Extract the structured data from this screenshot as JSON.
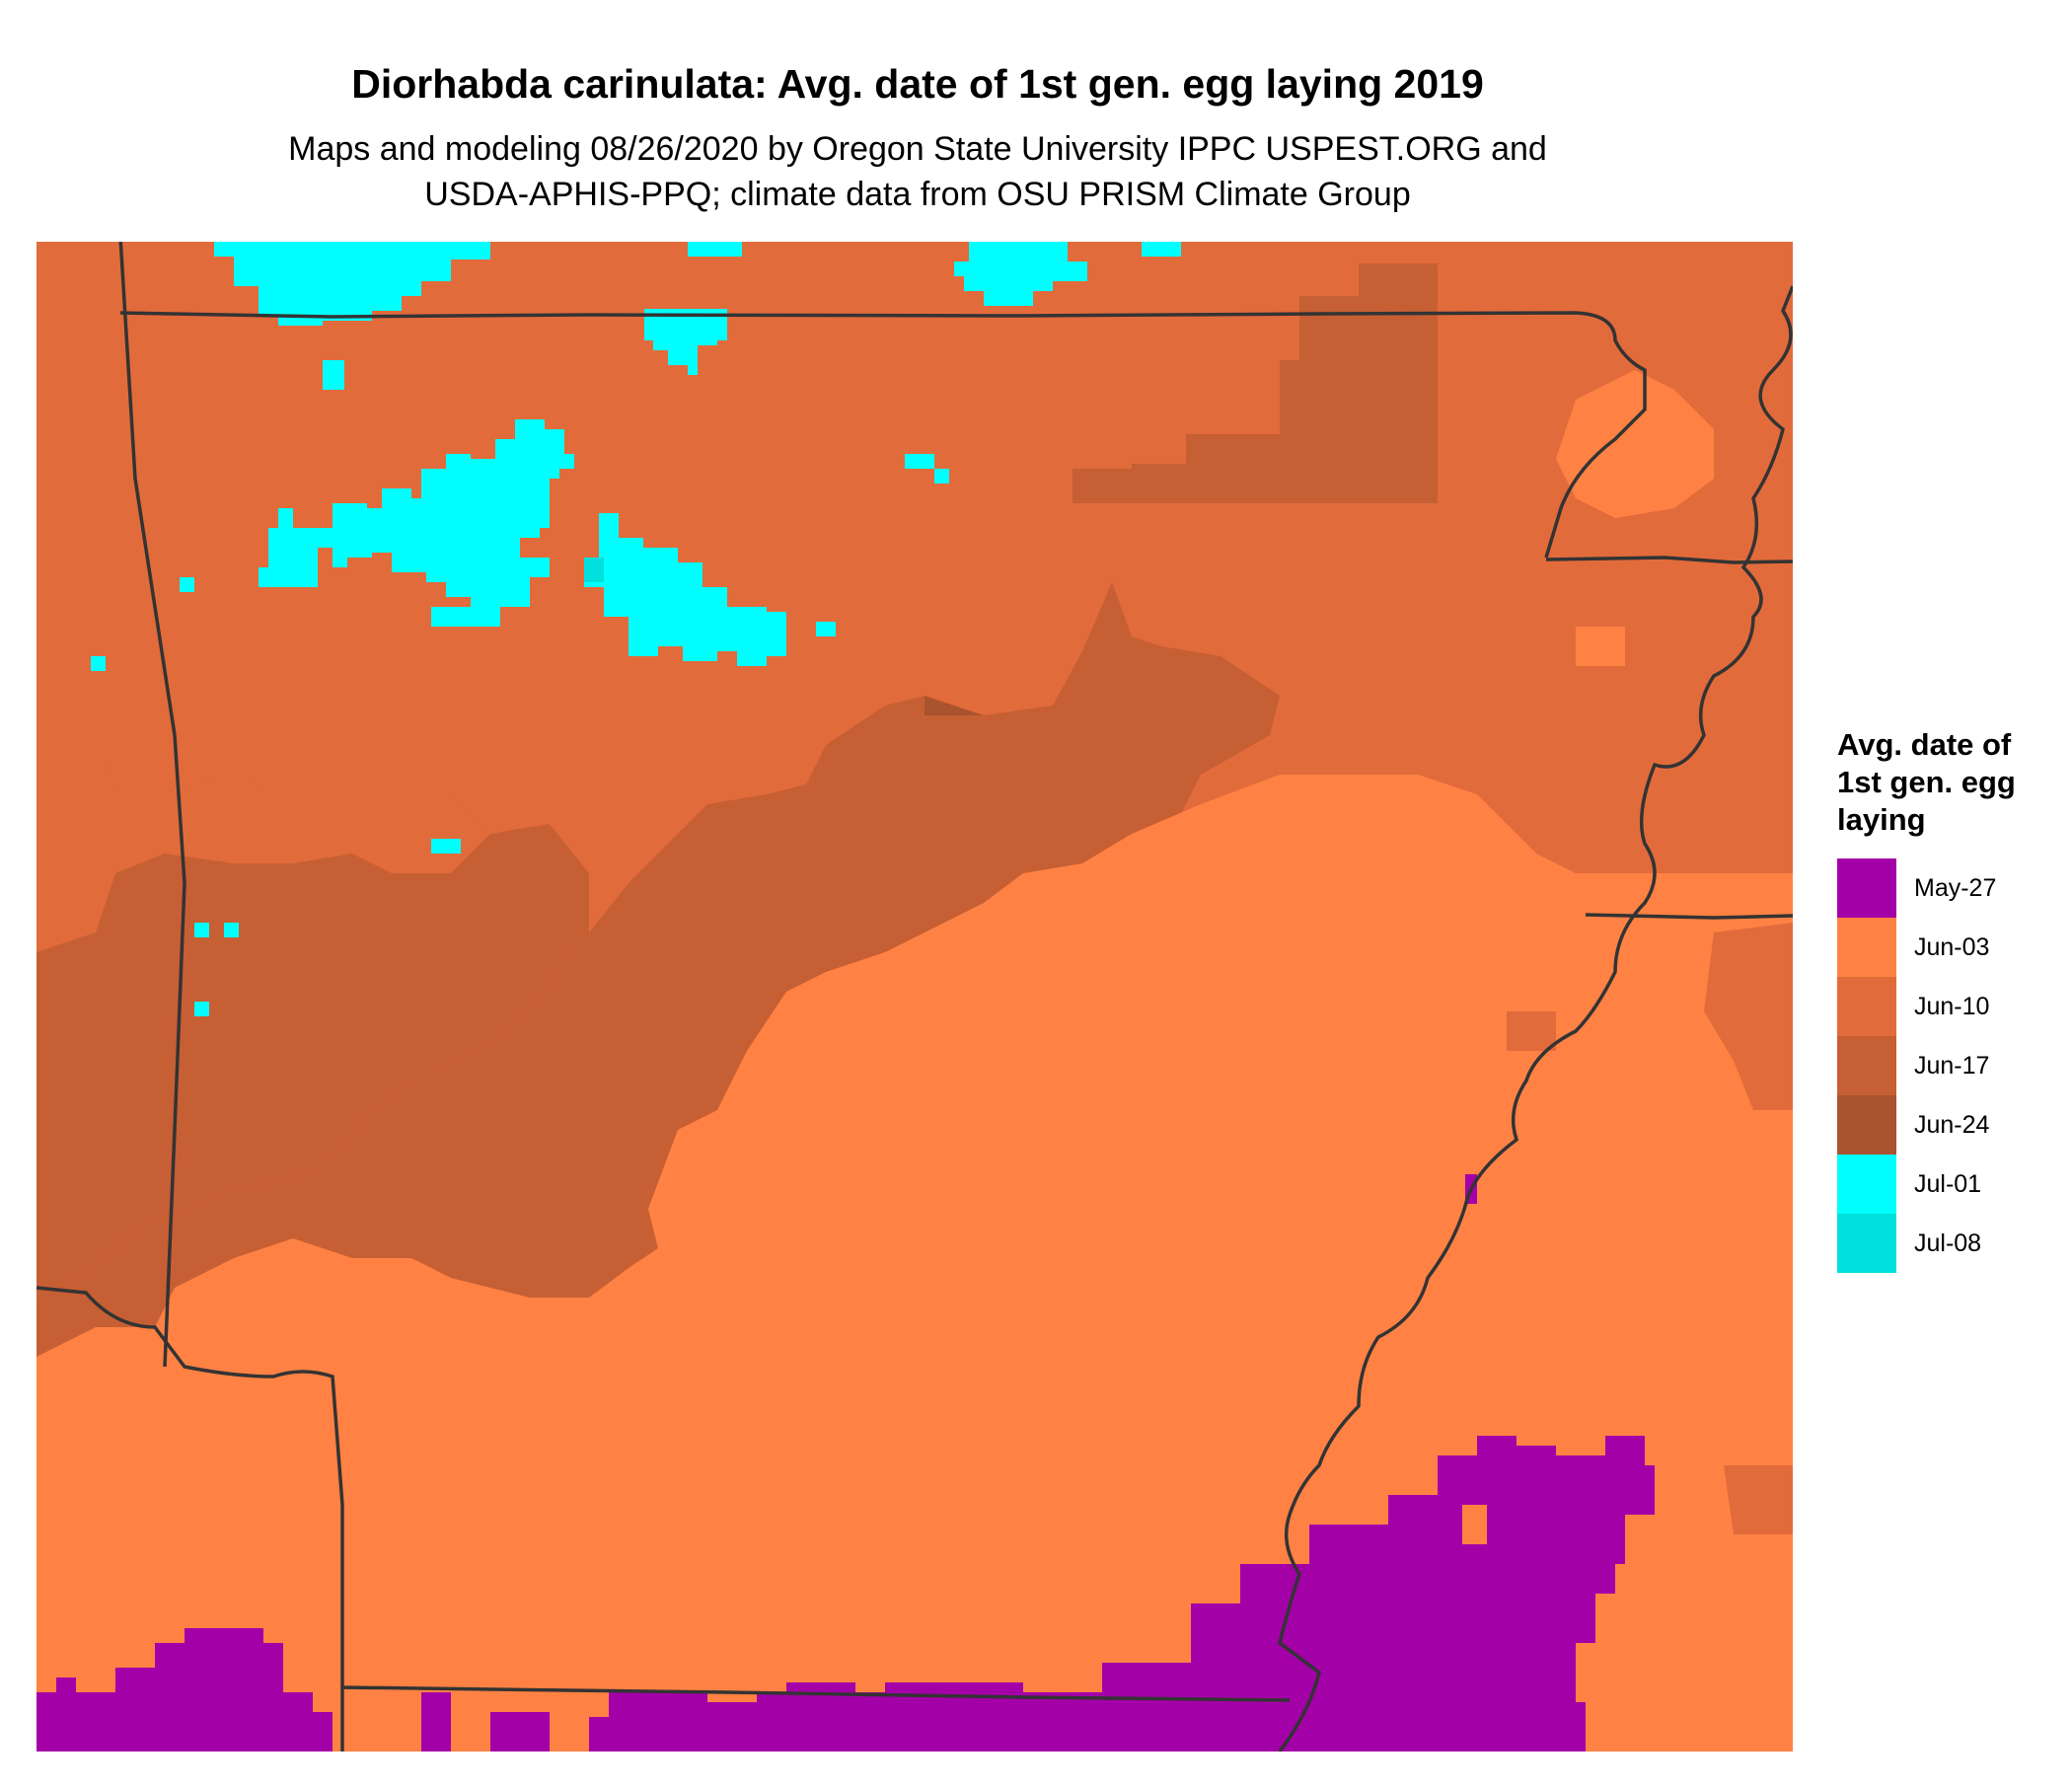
{
  "title": "Diorhabda carinulata: Avg. date of 1st gen. egg laying 2019",
  "subtitle_line1": "Maps and modeling 08/26/2020 by Oregon State University IPPC USPEST.ORG and",
  "subtitle_line2": "USDA-APHIS-PPQ; climate data from OSU PRISM Climate Group",
  "legend": {
    "title_lines": [
      "Avg. date of",
      "1st gen. egg",
      "laying"
    ],
    "items": [
      {
        "label": "May-27",
        "color": "#a400a8"
      },
      {
        "label": "Jun-03",
        "color": "#ff8244"
      },
      {
        "label": "Jun-10",
        "color": "#e26b3b"
      },
      {
        "label": "Jun-17",
        "color": "#c65f34"
      },
      {
        "label": "Jun-24",
        "color": "#a9532f"
      },
      {
        "label": "Jul-01",
        "color": "#00ffff"
      },
      {
        "label": "Jul-08",
        "color": "#00e0dc"
      }
    ]
  },
  "map": {
    "border_color": "#333333",
    "features": [
      {
        "name": "map-zone-jun-24",
        "category": "Jun-24"
      },
      {
        "name": "map-zone-jun-17",
        "category": "Jun-17"
      },
      {
        "name": "map-zone-jun-10",
        "category": "Jun-10"
      },
      {
        "name": "map-zone-jun-03",
        "category": "Jun-03"
      },
      {
        "name": "map-zone-may-27",
        "category": "May-27"
      },
      {
        "name": "map-zone-jul-01",
        "category": "Jul-01"
      },
      {
        "name": "map-zone-jul-08",
        "category": "Jul-08"
      }
    ]
  }
}
